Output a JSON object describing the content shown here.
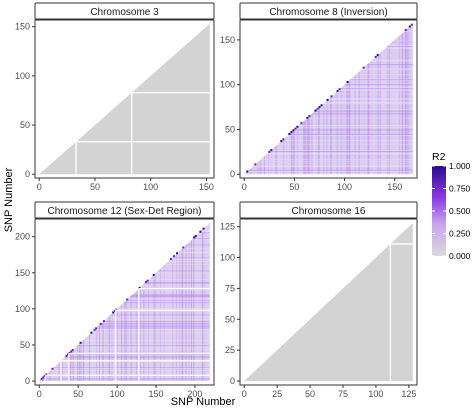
{
  "chart_data": {
    "type": "heatmap",
    "xlabel": "SNP Number",
    "ylabel": "SNP Number",
    "legend": {
      "title": "R2",
      "ticks": [
        "0.000",
        "0.250",
        "0.500",
        "0.750",
        "1.000"
      ],
      "low_color": "#d9d9d9",
      "high_color": "#2a0a8c",
      "placement": "right"
    },
    "panels": [
      {
        "title": "Chromosome 3",
        "n_snps": 153,
        "xlim": [
          0,
          153
        ],
        "ylim": [
          0,
          153
        ],
        "xticks": [
          "0",
          "50",
          "100",
          "150"
        ],
        "yticks": [
          "0",
          "50",
          "100",
          "150"
        ],
        "white_lines": [
          33,
          83
        ],
        "fill": "#d3d3d3",
        "ld_pattern": "none"
      },
      {
        "title": "Chromosome 8 (Inversion)",
        "n_snps": 168,
        "xlim": [
          0,
          168
        ],
        "ylim": [
          0,
          168
        ],
        "xticks": [
          "0",
          "50",
          "100",
          "150"
        ],
        "yticks": [
          "0",
          "50",
          "100",
          "150"
        ],
        "white_lines": [],
        "fill": "#d8c9f0",
        "ld_pattern": "dense"
      },
      {
        "title": "Chromosome 12 (Sex-Det Region)",
        "n_snps": 219,
        "xlim": [
          0,
          219
        ],
        "ylim": [
          0,
          219
        ],
        "xticks": [
          "0",
          "50",
          "100",
          "150",
          "200"
        ],
        "yticks": [
          "0",
          "50",
          "100",
          "150",
          "200"
        ],
        "white_lines": [
          8,
          28,
          38,
          98,
          128
        ],
        "fill": "#dccfef",
        "ld_pattern": "moderate"
      },
      {
        "title": "Chromosome 16",
        "n_snps": 128,
        "xlim": [
          0,
          128
        ],
        "ylim": [
          0,
          128
        ],
        "xticks": [
          "0",
          "25",
          "50",
          "75",
          "100",
          "125"
        ],
        "yticks": [
          "0",
          "25",
          "50",
          "75",
          "100",
          "125"
        ],
        "white_lines": [
          111
        ],
        "fill": "#d3d3d3",
        "ld_pattern": "none"
      }
    ]
  }
}
